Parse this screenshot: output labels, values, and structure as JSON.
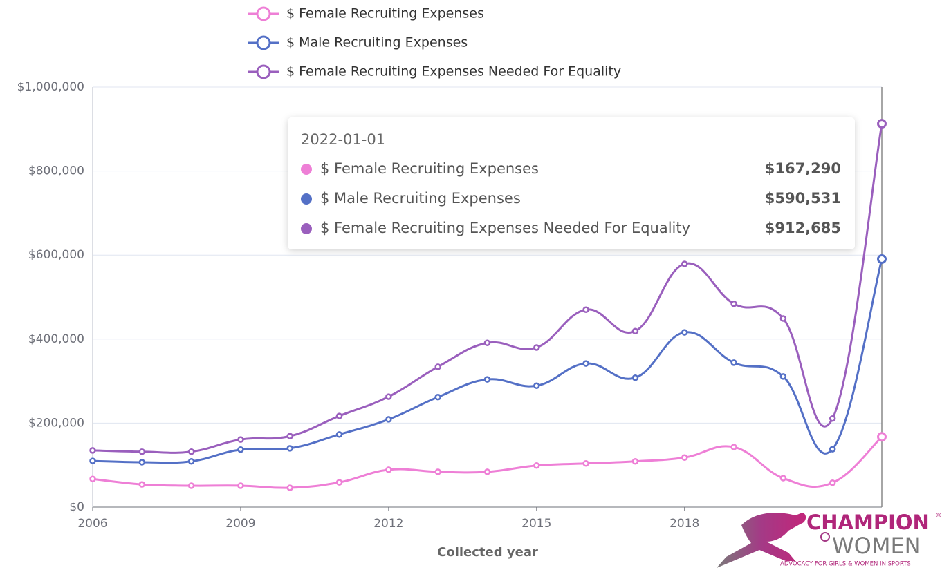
{
  "chart_data": {
    "type": "line",
    "x_label": "Collected year",
    "x": [
      2006,
      2007,
      2008,
      2009,
      2010,
      2011,
      2012,
      2013,
      2014,
      2015,
      2016,
      2017,
      2018,
      2019,
      2020,
      2021,
      2022
    ],
    "xlim": [
      2006,
      2022
    ],
    "xticks": [
      2006,
      2009,
      2012,
      2015,
      2018
    ],
    "ylim": [
      0,
      1000000
    ],
    "yticks": [
      {
        "value": 0,
        "label": "$0"
      },
      {
        "value": 200000,
        "label": "$200,000"
      },
      {
        "value": 400000,
        "label": "$400,000"
      },
      {
        "value": 600000,
        "label": "$600,000"
      },
      {
        "value": 800000,
        "label": "$800,000"
      },
      {
        "value": 1000000,
        "label": "$1,000,000"
      }
    ],
    "grid": true,
    "legend": "top",
    "series": [
      {
        "name": "$ Female Recruiting Expenses",
        "color": "#ee7fd6",
        "values": [
          67000,
          54000,
          51000,
          51000,
          46000,
          59000,
          89000,
          84000,
          84000,
          99000,
          104000,
          109000,
          118000,
          143000,
          69000,
          58000,
          167290
        ]
      },
      {
        "name": "$ Male Recruiting Expenses",
        "color": "#5470c6",
        "values": [
          110000,
          107000,
          109000,
          137000,
          140000,
          173000,
          209000,
          262000,
          304000,
          289000,
          342000,
          308000,
          416000,
          344000,
          311000,
          138000,
          590531
        ]
      },
      {
        "name": "$ Female Recruiting Expenses Needed For Equality",
        "color": "#9a5fbd",
        "values": [
          135000,
          132000,
          132000,
          161000,
          169000,
          217000,
          263000,
          334000,
          391000,
          380000,
          470000,
          419000,
          579000,
          484000,
          449000,
          211000,
          912685
        ]
      }
    ],
    "tooltip": {
      "date": "2022-01-01",
      "value_labels": [
        "$167,290",
        "$590,531",
        "$912,685"
      ]
    }
  },
  "logo": {
    "line1": "CHAMPION",
    "mark": "®",
    "line2": "WOMEN",
    "tagline": "ADVOCACY FOR GIRLS & WOMEN IN SPORTS"
  }
}
